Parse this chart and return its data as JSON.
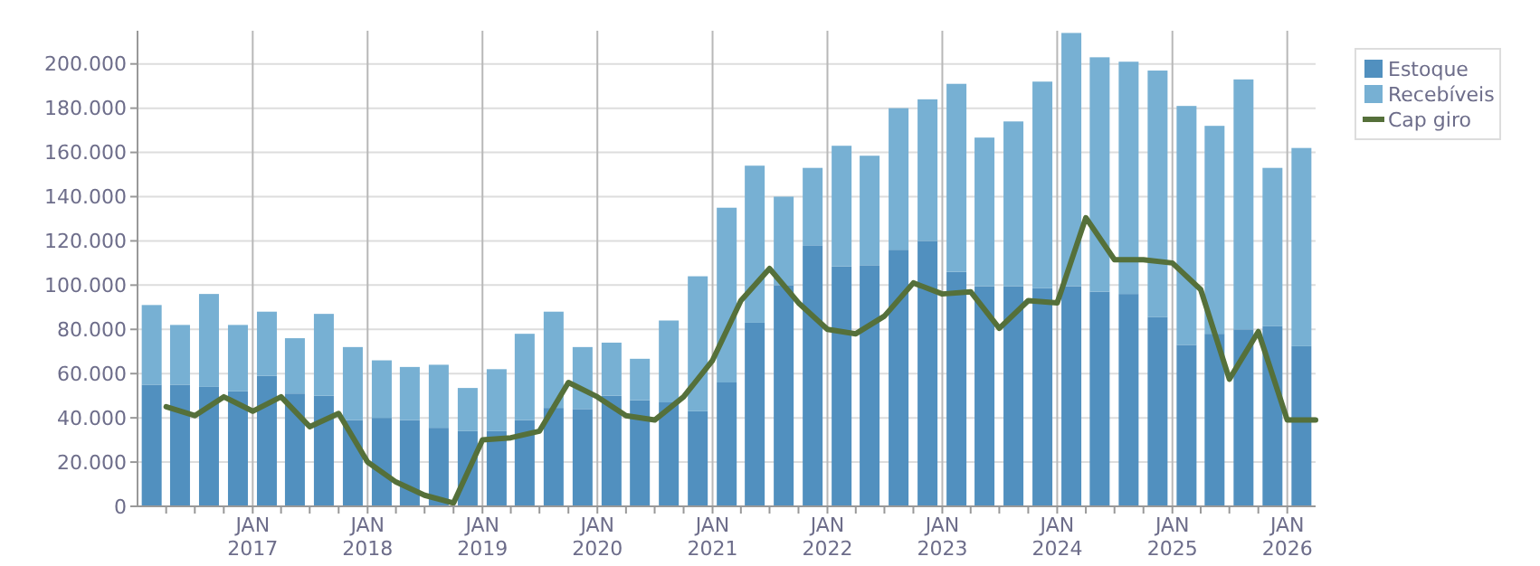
{
  "chart_data": {
    "type": "bar",
    "stacked": true,
    "grid": true,
    "legend": "top right",
    "xlim": [
      "2016-01-01",
      "2026-04-01"
    ],
    "ylim": [
      0,
      215000
    ],
    "yticks": [
      {
        "value": 0,
        "label": "0"
      },
      {
        "value": 20000,
        "label": "20.000"
      },
      {
        "value": 40000,
        "label": "40.000"
      },
      {
        "value": 60000,
        "label": "60.000"
      },
      {
        "value": 80000,
        "label": "80.000"
      },
      {
        "value": 100000,
        "label": "100.000"
      },
      {
        "value": 120000,
        "label": "120.000"
      },
      {
        "value": 140000,
        "label": "140.000"
      },
      {
        "value": 160000,
        "label": "160.000"
      },
      {
        "value": 180000,
        "label": "180.000"
      },
      {
        "value": 200000,
        "label": "200.000"
      }
    ],
    "xticks": [
      {
        "value": "2016-04-01",
        "label": null
      },
      {
        "value": "2016-07-01",
        "label": null
      },
      {
        "value": "2016-10-01",
        "label": null
      },
      {
        "value": "2017-01-01",
        "label": "JAN\n2017"
      },
      {
        "value": "2017-04-01",
        "label": null
      },
      {
        "value": "2017-07-01",
        "label": null
      },
      {
        "value": "2017-10-01",
        "label": null
      },
      {
        "value": "2018-01-01",
        "label": "JAN\n2018"
      },
      {
        "value": "2018-04-01",
        "label": null
      },
      {
        "value": "2018-07-01",
        "label": null
      },
      {
        "value": "2018-10-01",
        "label": null
      },
      {
        "value": "2019-01-01",
        "label": "JAN\n2019"
      },
      {
        "value": "2019-04-01",
        "label": null
      },
      {
        "value": "2019-07-01",
        "label": null
      },
      {
        "value": "2019-10-01",
        "label": null
      },
      {
        "value": "2020-01-01",
        "label": "JAN\n2020"
      },
      {
        "value": "2020-04-01",
        "label": null
      },
      {
        "value": "2020-07-01",
        "label": null
      },
      {
        "value": "2020-10-01",
        "label": null
      },
      {
        "value": "2021-01-01",
        "label": "JAN\n2021"
      },
      {
        "value": "2021-04-01",
        "label": null
      },
      {
        "value": "2021-07-01",
        "label": null
      },
      {
        "value": "2021-10-01",
        "label": null
      },
      {
        "value": "2022-01-01",
        "label": "JAN\n2022"
      },
      {
        "value": "2022-04-01",
        "label": null
      },
      {
        "value": "2022-07-01",
        "label": null
      },
      {
        "value": "2022-10-01",
        "label": null
      },
      {
        "value": "2023-01-01",
        "label": "JAN\n2023"
      },
      {
        "value": "2023-04-01",
        "label": null
      },
      {
        "value": "2023-07-01",
        "label": null
      },
      {
        "value": "2023-10-01",
        "label": null
      },
      {
        "value": "2024-01-01",
        "label": "JAN\n2024"
      },
      {
        "value": "2024-04-01",
        "label": null
      },
      {
        "value": "2024-07-01",
        "label": null
      },
      {
        "value": "2024-10-01",
        "label": null
      },
      {
        "value": "2025-01-01",
        "label": "JAN\n2025"
      },
      {
        "value": "2025-04-01",
        "label": null
      },
      {
        "value": "2025-07-01",
        "label": null
      },
      {
        "value": "2025-10-01",
        "label": null
      },
      {
        "value": "2026-01-01",
        "label": "JAN\n2026"
      }
    ],
    "x": [
      "2016-02-15",
      "2016-05-15",
      "2016-08-15",
      "2016-11-15",
      "2017-02-15",
      "2017-05-15",
      "2017-08-15",
      "2017-11-15",
      "2018-02-15",
      "2018-05-15",
      "2018-08-15",
      "2018-11-15",
      "2019-02-15",
      "2019-05-15",
      "2019-08-15",
      "2019-11-15",
      "2020-02-15",
      "2020-05-15",
      "2020-08-15",
      "2020-11-15",
      "2021-02-15",
      "2021-05-15",
      "2021-08-15",
      "2021-11-15",
      "2022-02-15",
      "2022-05-15",
      "2022-08-15",
      "2022-11-15",
      "2023-02-15",
      "2023-05-15",
      "2023-08-15",
      "2023-11-15",
      "2024-02-15",
      "2024-05-15",
      "2024-08-15",
      "2024-11-15",
      "2025-02-15",
      "2025-05-15",
      "2025-08-15",
      "2025-11-15",
      "2026-02-15"
    ],
    "series": [
      {
        "name": "Estoque",
        "color": "#5190bf",
        "values": [
          55000,
          55000,
          54000,
          52000,
          59000,
          51000,
          50000,
          39000,
          40000,
          39000,
          35500,
          34000,
          34000,
          39000,
          44500,
          44000,
          50000,
          48000,
          47000,
          43000,
          56000,
          83000,
          100000,
          118000,
          108500,
          109000,
          116000,
          120000,
          106000,
          99500,
          99500,
          98600,
          99500,
          97000,
          96000,
          85500,
          73000,
          78000,
          80000,
          81400,
          72400
        ]
      },
      {
        "name": "Recebíveis",
        "color": "#77b0d3",
        "values": [
          36000,
          27000,
          42000,
          30000,
          29000,
          25000,
          37000,
          33000,
          26000,
          24000,
          28500,
          19500,
          28000,
          39000,
          43500,
          28000,
          24000,
          18700,
          37000,
          61000,
          79000,
          71000,
          40000,
          35000,
          54500,
          49500,
          64000,
          64000,
          85000,
          67200,
          74500,
          93400,
          114500,
          106000,
          105000,
          111500,
          108000,
          94000,
          113000,
          71600,
          89600
        ]
      },
      {
        "name": "Cap giro",
        "type": "line",
        "color": "#55703a",
        "x": [
          "2016-04-01",
          "2016-07-01",
          "2016-10-01",
          "2017-01-01",
          "2017-04-01",
          "2017-07-01",
          "2017-10-01",
          "2018-01-01",
          "2018-04-01",
          "2018-07-01",
          "2018-10-01",
          "2019-01-01",
          "2019-04-01",
          "2019-07-01",
          "2019-10-01",
          "2020-01-01",
          "2020-04-01",
          "2020-07-01",
          "2020-10-01",
          "2021-01-01",
          "2021-04-01",
          "2021-07-01",
          "2021-10-01",
          "2022-01-01",
          "2022-04-01",
          "2022-07-01",
          "2022-10-01",
          "2023-01-01",
          "2023-04-01",
          "2023-07-01",
          "2023-10-01",
          "2024-01-01",
          "2024-04-01",
          "2024-07-01",
          "2024-10-01",
          "2025-01-01",
          "2025-04-01",
          "2025-07-01",
          "2025-10-01",
          "2026-01-01",
          "2026-04-01"
        ],
        "values": [
          45000,
          41000,
          49500,
          43000,
          49500,
          36000,
          42000,
          20000,
          11000,
          5000,
          1500,
          30000,
          31000,
          34000,
          56000,
          49500,
          41000,
          39000,
          49500,
          66000,
          93000,
          107500,
          92000,
          80000,
          78000,
          86000,
          101000,
          96000,
          97000,
          80500,
          93000,
          92000,
          130500,
          111500,
          111500,
          110000,
          98000,
          57500,
          79000,
          39000,
          39000
        ]
      }
    ]
  }
}
